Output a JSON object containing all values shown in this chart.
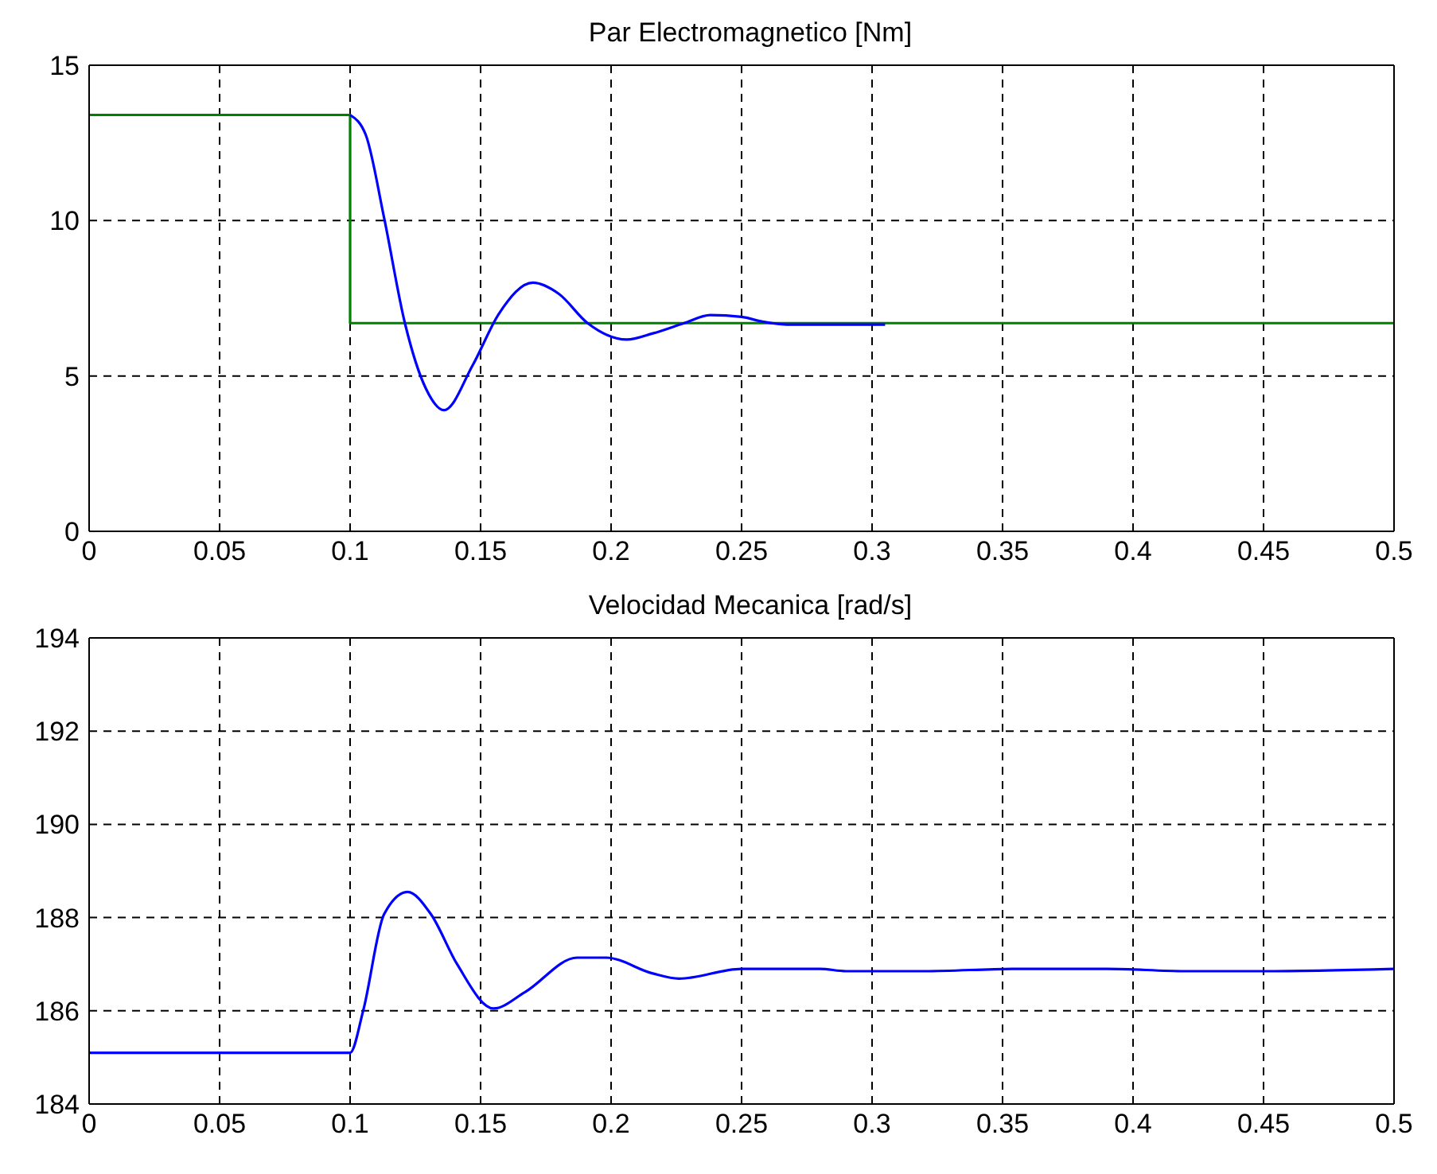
{
  "chart_data": [
    {
      "type": "line",
      "title": "Par Electromagnetico [Nm]",
      "xlim": [
        0,
        0.5
      ],
      "xticks": [
        0,
        0.05,
        0.1,
        0.15,
        0.2,
        0.25,
        0.3,
        0.35,
        0.4,
        0.45,
        0.5
      ],
      "ylim": [
        0,
        15
      ],
      "yticks": [
        0,
        5,
        10,
        15
      ],
      "grid": true,
      "series": [
        {
          "type": "step",
          "color": "#008000",
          "x": [
            0,
            0.1,
            0.5
          ],
          "values": [
            13.4,
            6.7,
            6.7
          ]
        },
        {
          "color": "#0000ff",
          "x": [
            0.1,
            0.106,
            0.113,
            0.121,
            0.129,
            0.136,
            0.147,
            0.157,
            0.17,
            0.18,
            0.191,
            0.206,
            0.216,
            0.228,
            0.238,
            0.25,
            0.258,
            0.27,
            0.305
          ],
          "values": [
            13.4,
            12.76,
            10.1,
            6.7,
            4.6,
            3.9,
            5.35,
            7.0,
            8.0,
            7.64,
            6.7,
            6.17,
            6.37,
            6.7,
            6.96,
            6.9,
            6.75,
            6.65,
            6.65
          ]
        }
      ]
    },
    {
      "type": "line",
      "title": "Velocidad Mecanica [rad/s]",
      "xlim": [
        0,
        0.5
      ],
      "xticks": [
        0,
        0.05,
        0.1,
        0.15,
        0.2,
        0.25,
        0.3,
        0.35,
        0.4,
        0.45,
        0.5
      ],
      "ylim": [
        184,
        194
      ],
      "yticks": [
        184,
        186,
        188,
        190,
        192,
        194
      ],
      "grid": true,
      "series": [
        {
          "color": "#0000ff",
          "x": [
            0,
            0.1,
            0.105,
            0.113,
            0.122,
            0.131,
            0.141,
            0.155,
            0.167,
            0.187,
            0.198,
            0.216,
            0.226,
            0.25,
            0.28,
            0.29,
            0.32,
            0.355,
            0.39,
            0.42,
            0.45,
            0.5
          ],
          "values": [
            185.1,
            185.1,
            186.0,
            188.07,
            188.55,
            188.07,
            187.0,
            186.05,
            186.4,
            187.14,
            187.14,
            186.8,
            186.69,
            186.9,
            186.9,
            186.85,
            186.85,
            186.9,
            186.9,
            186.85,
            186.85,
            186.9
          ]
        }
      ]
    }
  ]
}
